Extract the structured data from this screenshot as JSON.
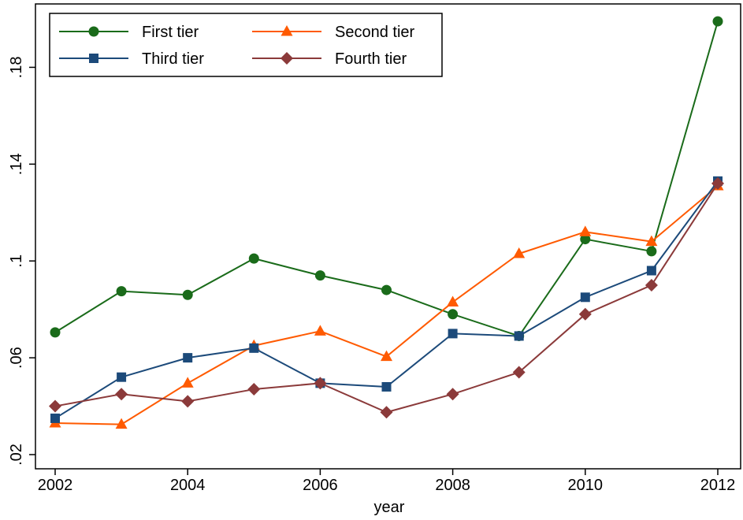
{
  "chart_data": {
    "type": "line",
    "title": "",
    "xlabel": "year",
    "ylabel": "",
    "x": [
      2002,
      2003,
      2004,
      2005,
      2006,
      2007,
      2008,
      2009,
      2010,
      2011,
      2012
    ],
    "xticks": [
      "2002",
      "2004",
      "2006",
      "2008",
      "2010",
      "2012"
    ],
    "yticks": [
      ".02",
      ".06",
      ".1",
      ".14",
      ".18"
    ],
    "xlim": [
      2002,
      2012
    ],
    "ylim": [
      0.02,
      0.2
    ],
    "grid": false,
    "legend_position": "top-left",
    "series": [
      {
        "name": "First tier",
        "color": "#1a6b1a",
        "marker": "circle",
        "values": [
          0.0705,
          0.0875,
          0.086,
          0.101,
          0.094,
          0.088,
          0.078,
          0.069,
          0.109,
          0.104,
          0.199
        ]
      },
      {
        "name": "Second tier",
        "color": "#ff5a00",
        "marker": "triangle",
        "values": [
          0.033,
          0.0325,
          0.0495,
          0.065,
          0.071,
          0.0605,
          0.083,
          0.103,
          0.112,
          0.108,
          0.131
        ]
      },
      {
        "name": "Third tier",
        "color": "#1c4a7a",
        "marker": "square",
        "values": [
          0.035,
          0.052,
          0.06,
          0.064,
          0.0495,
          0.048,
          0.07,
          0.069,
          0.085,
          0.096,
          0.133
        ]
      },
      {
        "name": "Fourth tier",
        "color": "#8b3a3a",
        "marker": "diamond",
        "values": [
          0.04,
          0.045,
          0.042,
          0.047,
          0.0495,
          0.0375,
          0.045,
          0.054,
          0.078,
          0.09,
          0.132
        ]
      }
    ]
  }
}
